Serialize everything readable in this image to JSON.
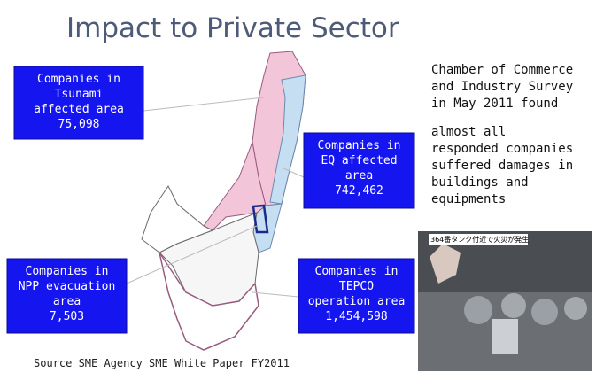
{
  "title": "Impact to Private Sector",
  "callouts": [
    {
      "lines": [
        "Companies in",
        "Tsunami",
        "affected area",
        "75,098"
      ]
    },
    {
      "lines": [
        "Companies in",
        "EQ affected",
        "area",
        "742,462"
      ]
    },
    {
      "lines": [
        "Companies in",
        "NPP evacuation",
        "area",
        "7,503"
      ]
    },
    {
      "lines": [
        "Companies in",
        "TEPCO",
        "operation area",
        "1,454,598"
      ]
    }
  ],
  "survey": {
    "intro": [
      "Chamber of Commerce",
      "and Industry Survey",
      "in May 2011 found"
    ],
    "finding": [
      "almost all",
      "responded companies",
      "suffered damages in",
      "buildings and",
      "equipments"
    ]
  },
  "photo": {
    "caption": "364番タンク付近で火災が発生"
  },
  "source": "Source SME Agency  SME White Paper FY2011"
}
